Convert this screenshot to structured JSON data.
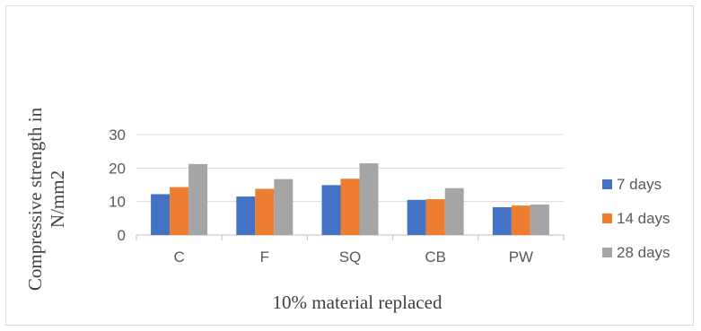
{
  "chart_data": {
    "type": "bar",
    "categories": [
      "C",
      "F",
      "SQ",
      "CB",
      "PW"
    ],
    "series": [
      {
        "name": "7 days",
        "color": "#4472C4",
        "values": [
          12.2,
          11.5,
          14.9,
          10.5,
          8.3
        ]
      },
      {
        "name": "14 days",
        "color": "#ED7D31",
        "values": [
          14.3,
          13.8,
          16.8,
          10.7,
          8.8
        ]
      },
      {
        "name": "28 days",
        "color": "#A5A5A5",
        "values": [
          21.2,
          16.7,
          21.4,
          14.0,
          9.1
        ]
      }
    ],
    "xlabel": "10% material replaced",
    "ylabel_lines": [
      "Compressive strength in",
      "N/mm2"
    ],
    "ylim": [
      0,
      30
    ],
    "yticks": [
      0,
      10,
      20,
      30
    ],
    "grid": true,
    "legend_position": "right"
  }
}
